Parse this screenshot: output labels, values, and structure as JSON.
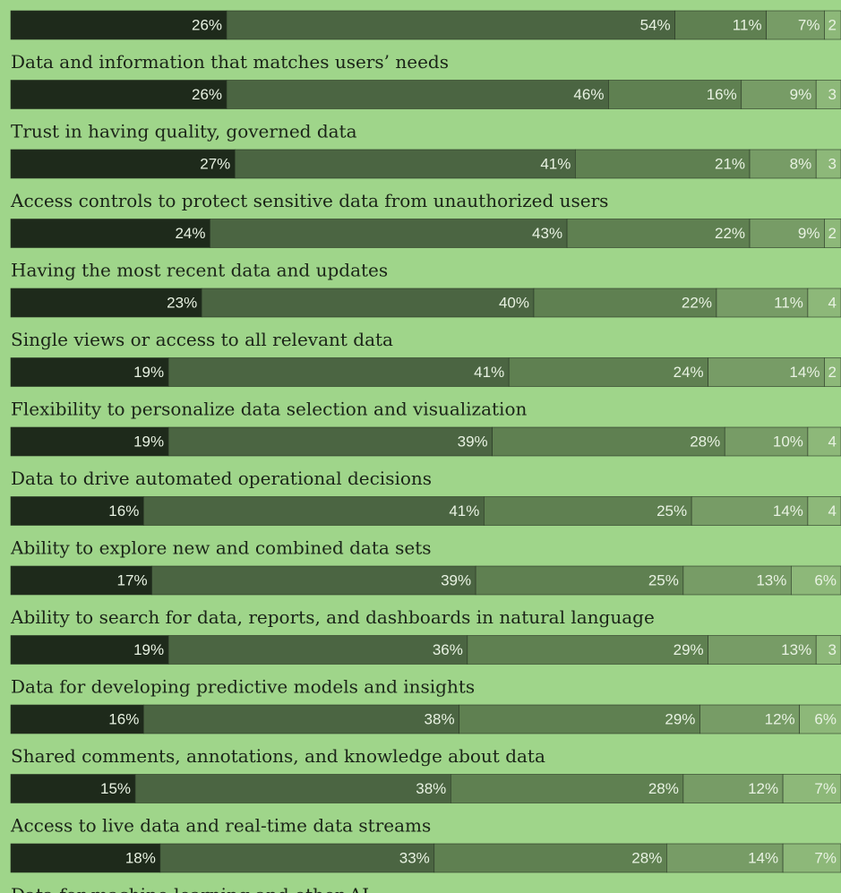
{
  "chart_data": {
    "type": "stacked-bar",
    "orientation": "horizontal",
    "xlim": [
      0,
      100
    ],
    "categories": [
      null,
      "Data and information that matches users’ needs",
      "Trust in having quality, governed data",
      "Access controls to protect sensitive data from unauthorized users",
      "Having the most recent data and updates",
      "Single views or access to all relevant data",
      "Flexibility to personalize data selection and visualization",
      "Data to drive automated operational decisions",
      "Ability to explore new and combined data sets",
      "Ability to search for data, reports, and dashboards in natural language",
      "Data for developing predictive models and insights",
      "Shared comments, annotations, and knowledge about data",
      "Access to live data and real-time data streams",
      "Data for machine learning and other AI"
    ],
    "series": [
      {
        "color": "#1e2a1b",
        "values": [
          26,
          26,
          27,
          24,
          23,
          19,
          19,
          16,
          17,
          19,
          16,
          15,
          18,
          null
        ],
        "value_labels": [
          "26%",
          "26%",
          "27%",
          "24%",
          "23%",
          "19%",
          "19%",
          "16%",
          "17%",
          "19%",
          "16%",
          "15%",
          "18%",
          null
        ]
      },
      {
        "color": "#4b6542",
        "values": [
          54,
          46,
          41,
          43,
          40,
          41,
          39,
          41,
          39,
          36,
          38,
          38,
          33,
          null
        ],
        "value_labels": [
          "54%",
          "46%",
          "41%",
          "43%",
          "40%",
          "41%",
          "39%",
          "41%",
          "39%",
          "36%",
          "38%",
          "38%",
          "33%",
          null
        ]
      },
      {
        "color": "#5f8051",
        "values": [
          11,
          16,
          21,
          22,
          22,
          24,
          28,
          25,
          25,
          29,
          29,
          28,
          28,
          null
        ],
        "value_labels": [
          "11%",
          "16%",
          "21%",
          "22%",
          "22%",
          "24%",
          "28%",
          "25%",
          "25%",
          "29%",
          "29%",
          "28%",
          "28%",
          null
        ]
      },
      {
        "color": "#779c66",
        "values": [
          7,
          9,
          8,
          9,
          11,
          14,
          10,
          14,
          13,
          13,
          12,
          12,
          14,
          null
        ],
        "value_labels": [
          "7%",
          "9%",
          "8%",
          "9%",
          "11%",
          "14%",
          "10%",
          "14%",
          "13%",
          "13%",
          "12%",
          "12%",
          "14%",
          null
        ]
      },
      {
        "color": "#8db879",
        "values": [
          2,
          3,
          3,
          2,
          4,
          2,
          4,
          4,
          6,
          3,
          6,
          7,
          7,
          null
        ],
        "value_labels": [
          2,
          3,
          3,
          2,
          4,
          2,
          4,
          4,
          "6%",
          3,
          "6%",
          "7%",
          "7%",
          null
        ]
      }
    ]
  }
}
